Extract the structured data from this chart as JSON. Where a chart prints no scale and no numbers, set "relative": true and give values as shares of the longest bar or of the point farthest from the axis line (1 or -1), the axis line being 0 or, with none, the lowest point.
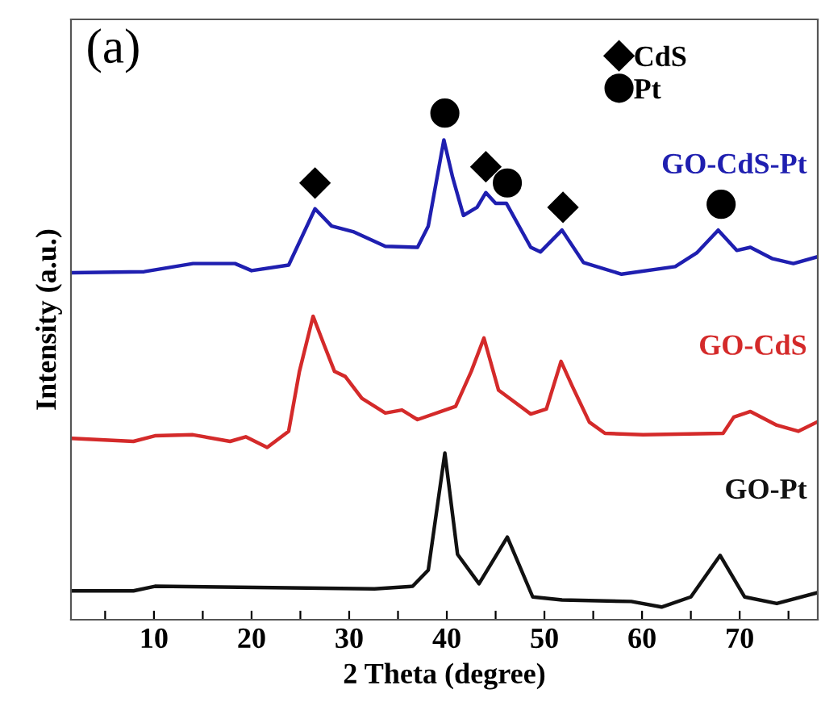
{
  "chart_data": {
    "type": "line",
    "relative": true,
    "xlabel": "2 Theta (degree)",
    "ylabel": "Intensity (a.u.)",
    "annotations": [
      "(a)"
    ],
    "xlim": [
      1.5,
      78
    ],
    "xticks": [
      {
        "value": 5,
        "label": null
      },
      10,
      {
        "value": 15,
        "label": null
      },
      20,
      {
        "value": 25,
        "label": null
      },
      30,
      {
        "value": 35,
        "label": null
      },
      40,
      {
        "value": 45,
        "label": null
      },
      50,
      {
        "value": 55,
        "label": null
      },
      60,
      {
        "value": 65,
        "label": null
      },
      70,
      {
        "value": 75,
        "label": null
      }
    ],
    "tick_labels": "x",
    "legend": "top right",
    "grid": false,
    "line_style": "solid",
    "series": [
      {
        "name": "GO-CdS-Pt",
        "color": "#1f1fb0",
        "x": [
          1.6,
          9.0,
          14,
          18.3,
          20,
          23.8,
          26.5,
          28.2,
          30.4,
          33.7,
          37,
          38.1,
          39.7,
          40.6,
          41.7,
          43.1,
          44.0,
          45.0,
          46.1,
          48.6,
          49.6,
          51.8,
          54.0,
          57.9,
          63.4,
          65.6,
          67.8,
          69.7,
          71.1,
          73.3,
          75.5,
          77.9
        ],
        "values": [
          0.685,
          0.687,
          0.703,
          0.703,
          0.689,
          0.7,
          0.811,
          0.777,
          0.766,
          0.737,
          0.735,
          0.777,
          0.947,
          0.873,
          0.798,
          0.814,
          0.843,
          0.822,
          0.822,
          0.735,
          0.726,
          0.769,
          0.705,
          0.682,
          0.697,
          0.724,
          0.769,
          0.729,
          0.735,
          0.713,
          0.703,
          0.716
        ]
      },
      {
        "name": "GO-CdS",
        "color": "#d42a2a",
        "x": [
          1.6,
          7.9,
          10.1,
          14,
          17.8,
          19.4,
          21.6,
          23.8,
          24.9,
          26.3,
          27.4,
          28.5,
          29.6,
          31.3,
          33.7,
          35.4,
          37.0,
          40.9,
          42.5,
          43.8,
          45.3,
          48.6,
          50.2,
          51.7,
          52.9,
          54.6,
          56.2,
          60.1,
          68.3,
          69.4,
          71.1,
          73.8,
          76.0,
          77.9
        ],
        "values": [
          0.358,
          0.352,
          0.363,
          0.365,
          0.352,
          0.361,
          0.34,
          0.372,
          0.49,
          0.599,
          0.544,
          0.49,
          0.48,
          0.437,
          0.408,
          0.414,
          0.395,
          0.421,
          0.49,
          0.556,
          0.453,
          0.406,
          0.416,
          0.51,
          0.459,
          0.39,
          0.368,
          0.365,
          0.368,
          0.4,
          0.411,
          0.384,
          0.372,
          0.39
        ]
      },
      {
        "name": "GO-Pt",
        "color": "#111111",
        "x": [
          1.6,
          7.9,
          10.1,
          32.6,
          36.5,
          38.1,
          39.8,
          41.1,
          43.3,
          46.2,
          48.8,
          51.8,
          58.9,
          62.0,
          65.0,
          68.0,
          70.5,
          73.8,
          77.9
        ],
        "values": [
          0.057,
          0.057,
          0.066,
          0.061,
          0.066,
          0.098,
          0.329,
          0.129,
          0.071,
          0.163,
          0.045,
          0.039,
          0.036,
          0.025,
          0.045,
          0.127,
          0.045,
          0.032,
          0.053
        ]
      },
      {
        "name": "CdS",
        "type": "scatter",
        "marker": "diamond",
        "color": "#000000",
        "x": [
          26.5,
          44.0,
          51.9
        ],
        "values": [
          0.862,
          0.894,
          0.814
        ]
      },
      {
        "name": "Pt",
        "type": "scatter",
        "marker": "circle",
        "color": "#000000",
        "x": [
          39.8,
          46.2,
          68.1
        ],
        "values": [
          1.0,
          0.862,
          0.82
        ]
      }
    ]
  }
}
